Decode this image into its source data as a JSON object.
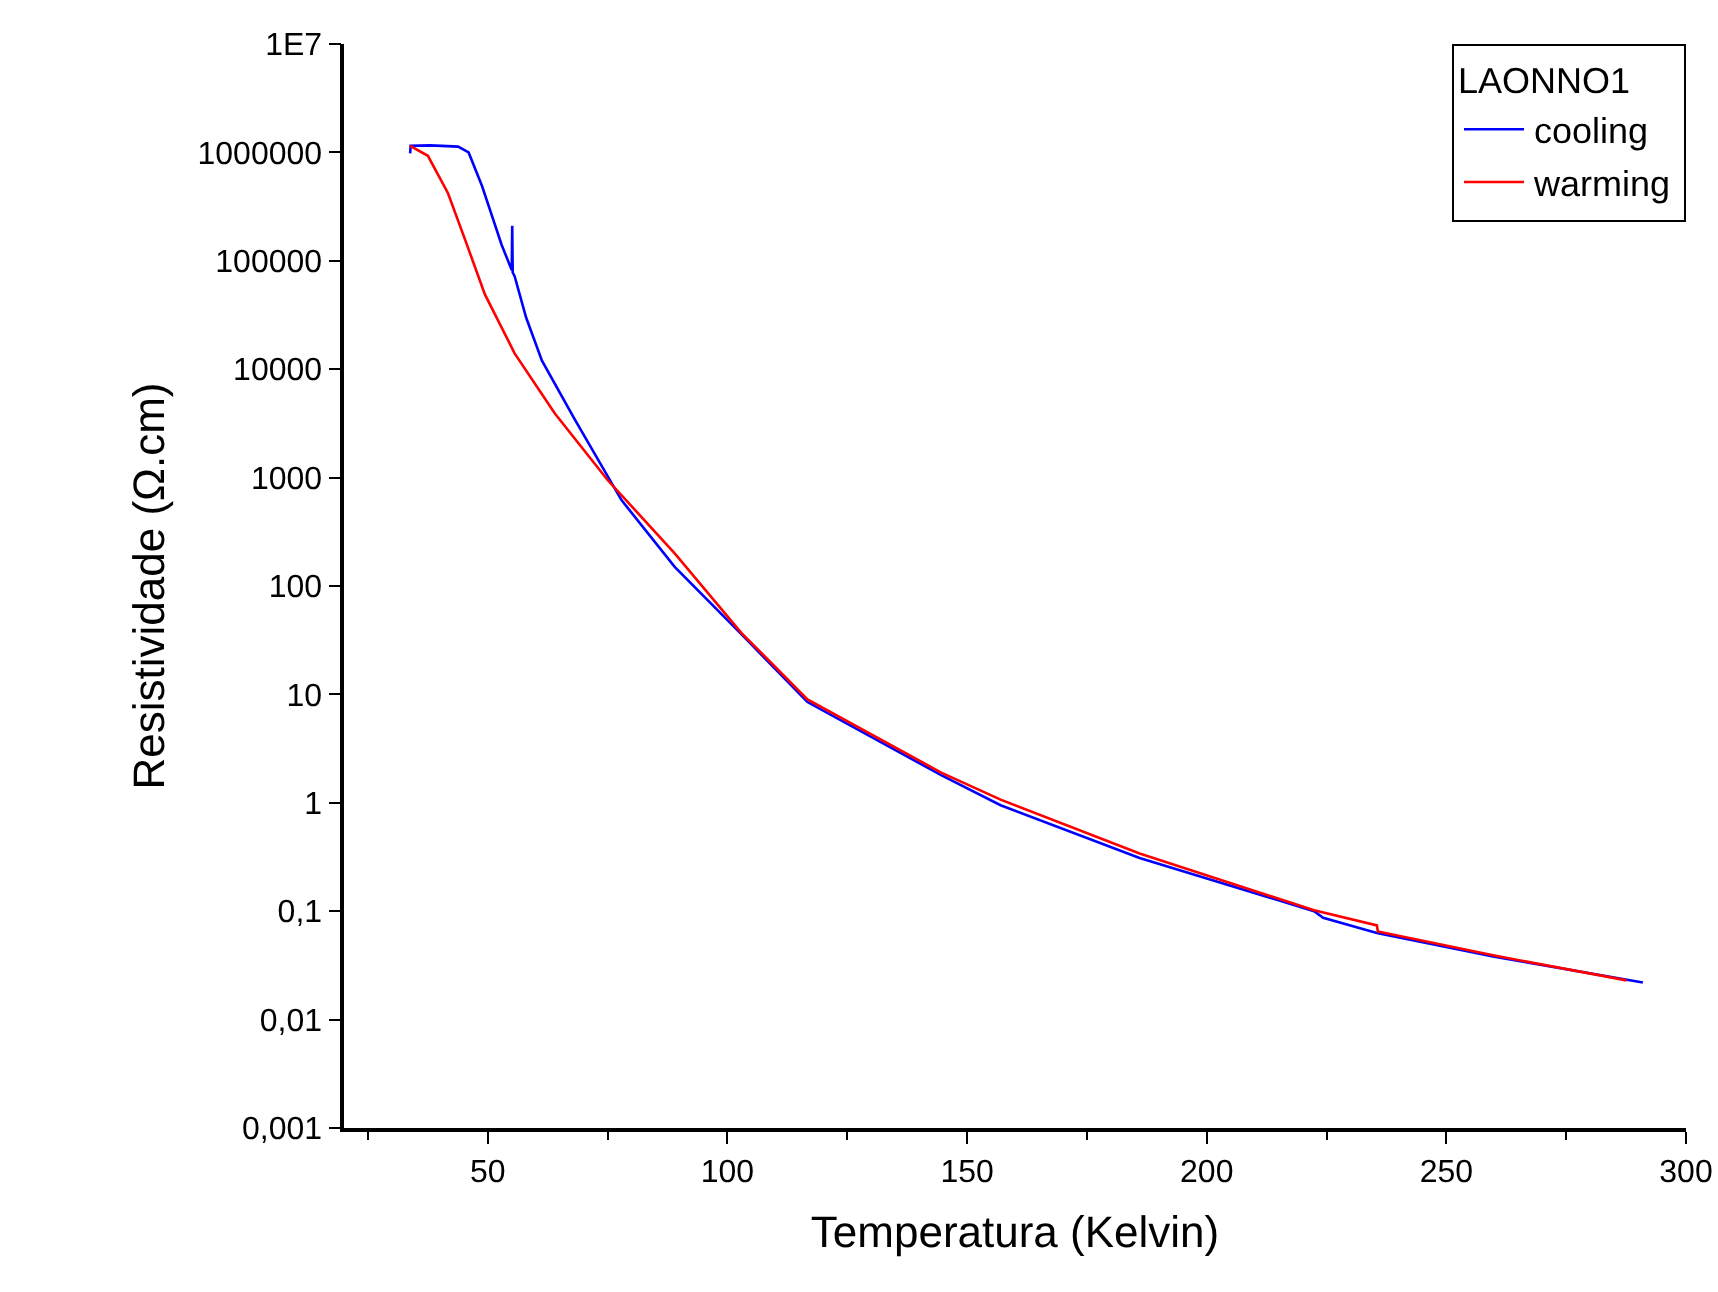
{
  "chart_data": {
    "type": "line",
    "xlabel": "Temperatura (Kelvin)",
    "ylabel": "Resistividade (Ω.cm)",
    "legend_title": "LAONNO1",
    "log": "y",
    "xlim": [
      20,
      300
    ],
    "xticks": [
      50,
      100,
      150,
      200,
      250,
      300
    ],
    "ylim": [
      0.001,
      10000000
    ],
    "yticks": [
      {
        "value": 0.001,
        "label": "0,001"
      },
      {
        "value": 0.01,
        "label": "0,01"
      },
      {
        "value": 0.1,
        "label": "0,1"
      },
      1,
      10,
      100,
      1000,
      10000,
      100000,
      1000000,
      {
        "value": 10000000,
        "label": "1E7"
      }
    ],
    "grid": false,
    "legend": "top right",
    "marker": "none",
    "line_style": "solid",
    "series": [
      {
        "name": "cooling",
        "color": "#0000ff",
        "x": [
          33.8,
          33.9,
          38,
          43.8,
          46,
          48.8,
          51,
          52.9,
          55.0,
          55.1,
          55.2,
          55.6,
          58,
          61.3,
          68.2,
          77.9,
          89,
          102.9,
          116.7,
          144.6,
          157,
          186,
          222.4,
          224.3,
          235.5,
          260,
          291
        ],
        "values": [
          980000,
          1150000,
          1160000,
          1130000,
          1000000,
          490000,
          250000,
          140000,
          82000,
          210000,
          78000,
          72000,
          30000,
          12000,
          3400,
          620,
          150,
          36,
          8.5,
          1.8,
          0.95,
          0.31,
          0.1,
          0.087,
          0.063,
          0.038,
          0.022
        ]
      },
      {
        "name": "warming",
        "color": "#ff0000",
        "x": [
          33.8,
          37.5,
          41.7,
          45.3,
          49.4,
          55.6,
          64,
          75,
          89,
          102.9,
          116.7,
          144.6,
          157,
          186,
          222.4,
          235.5,
          235.7,
          260,
          287.6
        ],
        "values": [
          1150000,
          930000,
          420000,
          155000,
          49000,
          14000,
          3900,
          950,
          200,
          37,
          9,
          1.9,
          1.07,
          0.34,
          0.102,
          0.074,
          0.065,
          0.039,
          0.023
        ]
      }
    ]
  }
}
